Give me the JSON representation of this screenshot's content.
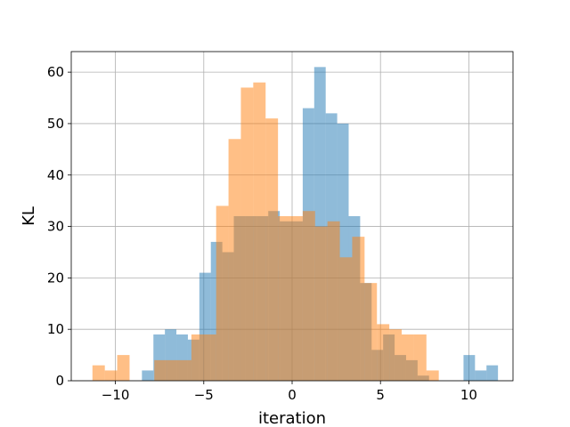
{
  "chart_data": {
    "type": "bar",
    "subtype": "overlapping-histogram",
    "title": "",
    "xlabel": "iteration",
    "ylabel": "KL",
    "xlim": [
      -12.5,
      12.5
    ],
    "ylim": [
      0,
      64
    ],
    "xticks": [
      -10,
      -5,
      0,
      5,
      10
    ],
    "xtick_labels": [
      "−10",
      "−5",
      "0",
      "5",
      "10"
    ],
    "yticks": [
      0,
      10,
      20,
      30,
      40,
      50,
      60
    ],
    "ytick_labels": [
      "0",
      "10",
      "20",
      "30",
      "40",
      "50",
      "60"
    ],
    "grid": true,
    "legend": "none",
    "series": [
      {
        "color": "#1f77b4",
        "opacity": 0.5,
        "bins": [
          {
            "x0": -8.5,
            "x1": -7.85,
            "count": 2
          },
          {
            "x0": -7.85,
            "x1": -7.2,
            "count": 9
          },
          {
            "x0": -7.2,
            "x1": -6.55,
            "count": 10
          },
          {
            "x0": -6.55,
            "x1": -5.9,
            "count": 9
          },
          {
            "x0": -5.9,
            "x1": -5.25,
            "count": 8
          },
          {
            "x0": -5.25,
            "x1": -4.6,
            "count": 21
          },
          {
            "x0": -4.6,
            "x1": -3.95,
            "count": 27
          },
          {
            "x0": -3.95,
            "x1": -3.3,
            "count": 25
          },
          {
            "x0": -3.3,
            "x1": -2.65,
            "count": 32
          },
          {
            "x0": -2.65,
            "x1": -2.0,
            "count": 32
          },
          {
            "x0": -2.0,
            "x1": -1.35,
            "count": 32
          },
          {
            "x0": -1.35,
            "x1": -0.7,
            "count": 33
          },
          {
            "x0": -0.7,
            "x1": -0.05,
            "count": 31
          },
          {
            "x0": -0.05,
            "x1": 0.6,
            "count": 31
          },
          {
            "x0": 0.6,
            "x1": 1.25,
            "count": 53
          },
          {
            "x0": 1.25,
            "x1": 1.9,
            "count": 61
          },
          {
            "x0": 1.9,
            "x1": 2.55,
            "count": 52
          },
          {
            "x0": 2.55,
            "x1": 3.2,
            "count": 50
          },
          {
            "x0": 3.2,
            "x1": 3.85,
            "count": 32
          },
          {
            "x0": 3.85,
            "x1": 4.5,
            "count": 19
          },
          {
            "x0": 4.5,
            "x1": 5.15,
            "count": 6
          },
          {
            "x0": 5.15,
            "x1": 5.8,
            "count": 9
          },
          {
            "x0": 5.8,
            "x1": 6.45,
            "count": 5
          },
          {
            "x0": 6.45,
            "x1": 7.1,
            "count": 4
          },
          {
            "x0": 7.1,
            "x1": 7.75,
            "count": 1
          },
          {
            "x0": 7.75,
            "x1": 8.4,
            "count": 0
          },
          {
            "x0": 8.4,
            "x1": 9.05,
            "count": 0
          },
          {
            "x0": 9.05,
            "x1": 9.7,
            "count": 0
          },
          {
            "x0": 9.7,
            "x1": 10.35,
            "count": 5
          },
          {
            "x0": 10.35,
            "x1": 11.0,
            "count": 2
          },
          {
            "x0": 11.0,
            "x1": 11.65,
            "count": 3
          }
        ]
      },
      {
        "color": "#ff7f0e",
        "opacity": 0.5,
        "bins": [
          {
            "x0": -11.3,
            "x1": -10.6,
            "count": 3
          },
          {
            "x0": -10.6,
            "x1": -9.9,
            "count": 2
          },
          {
            "x0": -9.9,
            "x1": -9.2,
            "count": 5
          },
          {
            "x0": -9.2,
            "x1": -8.5,
            "count": 0
          },
          {
            "x0": -8.5,
            "x1": -7.8,
            "count": 0
          },
          {
            "x0": -7.8,
            "x1": -7.1,
            "count": 4
          },
          {
            "x0": -7.1,
            "x1": -6.4,
            "count": 4
          },
          {
            "x0": -6.4,
            "x1": -5.7,
            "count": 4
          },
          {
            "x0": -5.7,
            "x1": -5.0,
            "count": 9
          },
          {
            "x0": -5.0,
            "x1": -4.3,
            "count": 9
          },
          {
            "x0": -4.3,
            "x1": -3.6,
            "count": 34
          },
          {
            "x0": -3.6,
            "x1": -2.9,
            "count": 47
          },
          {
            "x0": -2.9,
            "x1": -2.2,
            "count": 57
          },
          {
            "x0": -2.2,
            "x1": -1.5,
            "count": 58
          },
          {
            "x0": -1.5,
            "x1": -0.8,
            "count": 51
          },
          {
            "x0": -0.8,
            "x1": -0.1,
            "count": 32
          },
          {
            "x0": -0.1,
            "x1": 0.6,
            "count": 32
          },
          {
            "x0": 0.6,
            "x1": 1.3,
            "count": 33
          },
          {
            "x0": 1.3,
            "x1": 2.0,
            "count": 30
          },
          {
            "x0": 2.0,
            "x1": 2.7,
            "count": 31
          },
          {
            "x0": 2.7,
            "x1": 3.4,
            "count": 24
          },
          {
            "x0": 3.4,
            "x1": 4.1,
            "count": 28
          },
          {
            "x0": 4.1,
            "x1": 4.8,
            "count": 19
          },
          {
            "x0": 4.8,
            "x1": 5.5,
            "count": 11
          },
          {
            "x0": 5.5,
            "x1": 6.2,
            "count": 10
          },
          {
            "x0": 6.2,
            "x1": 6.9,
            "count": 9
          },
          {
            "x0": 6.9,
            "x1": 7.6,
            "count": 9
          },
          {
            "x0": 7.6,
            "x1": 8.3,
            "count": 2
          }
        ]
      }
    ]
  }
}
